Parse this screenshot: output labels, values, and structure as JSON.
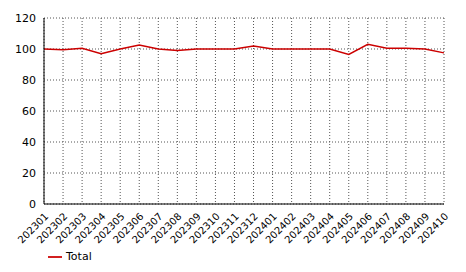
{
  "chart_data": {
    "type": "line",
    "categories": [
      "202301",
      "202302",
      "202303",
      "202304",
      "202305",
      "202306",
      "202307",
      "202308",
      "202309",
      "202310",
      "202311",
      "202312",
      "202401",
      "202402",
      "202403",
      "202404",
      "202405",
      "202406",
      "202407",
      "202408",
      "202409",
      "202410"
    ],
    "series": [
      {
        "name": "Total",
        "color": "#cc0000",
        "values": [
          100,
          99.5,
          100.5,
          97,
          100,
          102.5,
          100,
          99,
          100,
          100,
          100,
          102,
          100,
          100,
          100,
          100,
          96.5,
          103,
          100.5,
          100.5,
          100,
          97.5
        ]
      }
    ],
    "ylim": [
      0,
      120
    ],
    "yticks": [
      0,
      20,
      40,
      60,
      80,
      100,
      120
    ],
    "grid": true,
    "legend": "bottom-left"
  }
}
